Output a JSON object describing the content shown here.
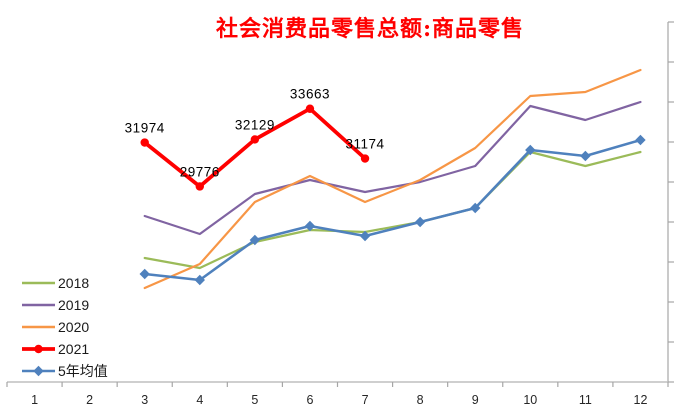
{
  "title": {
    "text": "社会消费品零售总额:商品零售",
    "color": "#FF0000"
  },
  "legend": {
    "position": "bottom-left",
    "items": [
      {
        "label": "2018",
        "color": "#9BBB59",
        "marker": "none"
      },
      {
        "label": "2019",
        "color": "#8064A2",
        "marker": "none"
      },
      {
        "label": "2020",
        "color": "#F79646",
        "marker": "none"
      },
      {
        "label": "2021",
        "color": "#FF0000",
        "marker": "circle"
      },
      {
        "label": "5年均值",
        "color": "#4F81BD",
        "marker": "diamond"
      }
    ]
  },
  "axes": {
    "x": {
      "tick_labels": [
        "1",
        "2",
        "3",
        "4",
        "5",
        "6",
        "7",
        "8",
        "9",
        "10",
        "11",
        "12"
      ],
      "line_color": "#BFBFBF",
      "tick_color": "#A6A6A6",
      "label_color": "#262626"
    },
    "y": {
      "side": "right",
      "min": 20000,
      "max": 38000,
      "step": 2000,
      "labels_visible": false,
      "line_color": "#A6A6A6",
      "tick_color": "#A6A6A6"
    }
  },
  "chart_data": {
    "type": "line",
    "title": "社会消费品零售总额:商品零售",
    "x_categories": [
      "1",
      "2",
      "3",
      "4",
      "5",
      "6",
      "7",
      "8",
      "9",
      "10",
      "11",
      "12"
    ],
    "ylim": [
      20000,
      38000
    ],
    "y_tick_step": 2000,
    "grid": false,
    "legend_position": "bottom-left",
    "series": [
      {
        "name": "2018",
        "color": "#9BBB59",
        "marker": "none",
        "line_width": 2.2,
        "show_labels": false,
        "x": [
          3,
          4,
          5,
          6,
          7,
          8,
          9,
          10,
          11,
          12
        ],
        "values": [
          26200,
          25700,
          27000,
          27600,
          27500,
          28000,
          28700,
          31500,
          30800,
          31500
        ]
      },
      {
        "name": "2019",
        "color": "#8064A2",
        "marker": "none",
        "line_width": 2.2,
        "show_labels": false,
        "x": [
          3,
          4,
          5,
          6,
          7,
          8,
          9,
          10,
          11,
          12
        ],
        "values": [
          28300,
          27400,
          29400,
          30100,
          29500,
          30000,
          30800,
          33800,
          33100,
          34000
        ]
      },
      {
        "name": "2020",
        "color": "#F79646",
        "marker": "none",
        "line_width": 2.2,
        "show_labels": false,
        "x": [
          3,
          4,
          5,
          6,
          7,
          8,
          9,
          10,
          11,
          12
        ],
        "values": [
          24700,
          25900,
          29000,
          30300,
          29000,
          30100,
          31700,
          34300,
          34500,
          35600
        ]
      },
      {
        "name": "2021",
        "color": "#FF0000",
        "marker": "circle",
        "line_width": 3.8,
        "show_labels": true,
        "x": [
          3,
          4,
          5,
          6,
          7
        ],
        "values": [
          31974,
          29776,
          32129,
          33663,
          31174
        ]
      },
      {
        "name": "5年均值",
        "color": "#4F81BD",
        "marker": "diamond",
        "line_width": 2.6,
        "show_labels": false,
        "x": [
          3,
          4,
          5,
          6,
          7,
          8,
          9,
          10,
          11,
          12
        ],
        "values": [
          25400,
          25100,
          27100,
          27800,
          27300,
          28000,
          28700,
          31600,
          31300,
          32100
        ]
      }
    ],
    "data_labels": {
      "series": "2021",
      "values": [
        "31974",
        "29776",
        "32129",
        "33663",
        "31174"
      ],
      "color": "#000000"
    }
  }
}
